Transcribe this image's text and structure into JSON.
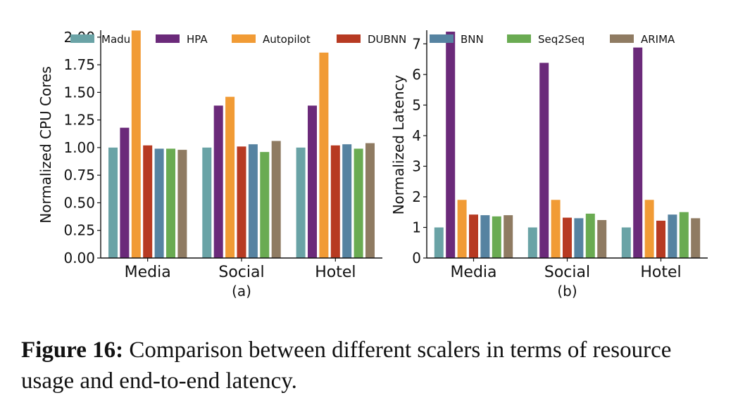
{
  "legend": [
    {
      "name": "Madu",
      "color": "#6aa3a6"
    },
    {
      "name": "HPA",
      "color": "#6b2a7a"
    },
    {
      "name": "Autopilot",
      "color": "#f19b35"
    },
    {
      "name": "DUBNN",
      "color": "#b73a22"
    },
    {
      "name": "BNN",
      "color": "#5683a1"
    },
    {
      "name": "Seq2Seq",
      "color": "#6aab52"
    },
    {
      "name": "ARIMA",
      "color": "#8f7b62"
    }
  ],
  "chart_data": [
    {
      "type": "bar",
      "subtitle": "(a)",
      "ylabel": "Normalized CPU Cores",
      "categories": [
        "Media",
        "Social",
        "Hotel"
      ],
      "ylim": [
        0,
        2.05
      ],
      "yticks": [
        "0.00",
        "0.25",
        "0.50",
        "0.75",
        "1.00",
        "1.25",
        "1.50",
        "1.75",
        "2.00"
      ],
      "series": [
        {
          "name": "Madu",
          "values": [
            1.0,
            1.0,
            1.0
          ]
        },
        {
          "name": "HPA",
          "values": [
            1.18,
            1.38,
            1.38
          ]
        },
        {
          "name": "Autopilot",
          "values": [
            2.06,
            1.46,
            1.86
          ]
        },
        {
          "name": "DUBNN",
          "values": [
            1.02,
            1.01,
            1.02
          ]
        },
        {
          "name": "BNN",
          "values": [
            0.99,
            1.03,
            1.03
          ]
        },
        {
          "name": "Seq2Seq",
          "values": [
            0.99,
            0.96,
            0.99
          ]
        },
        {
          "name": "ARIMA",
          "values": [
            0.98,
            1.06,
            1.04
          ]
        }
      ]
    },
    {
      "type": "bar",
      "subtitle": "(b)",
      "ylabel": "Normalized Latency",
      "categories": [
        "Media",
        "Social",
        "Hotel"
      ],
      "ylim": [
        0,
        7.4
      ],
      "yticks": [
        "0",
        "1",
        "2",
        "3",
        "4",
        "5",
        "6",
        "7"
      ],
      "series": [
        {
          "name": "Madu",
          "values": [
            1.0,
            1.0,
            1.0
          ]
        },
        {
          "name": "HPA",
          "values": [
            7.4,
            6.38,
            6.88
          ]
        },
        {
          "name": "Autopilot",
          "values": [
            1.9,
            1.9,
            1.9
          ]
        },
        {
          "name": "DUBNN",
          "values": [
            1.42,
            1.32,
            1.22
          ]
        },
        {
          "name": "BNN",
          "values": [
            1.4,
            1.3,
            1.42
          ]
        },
        {
          "name": "Seq2Seq",
          "values": [
            1.36,
            1.45,
            1.5
          ]
        },
        {
          "name": "ARIMA",
          "values": [
            1.4,
            1.24,
            1.3
          ]
        }
      ]
    }
  ],
  "caption": {
    "label": "Figure 16:",
    "text": " Comparison between different scalers in terms of resource usage and end-to-end latency."
  }
}
